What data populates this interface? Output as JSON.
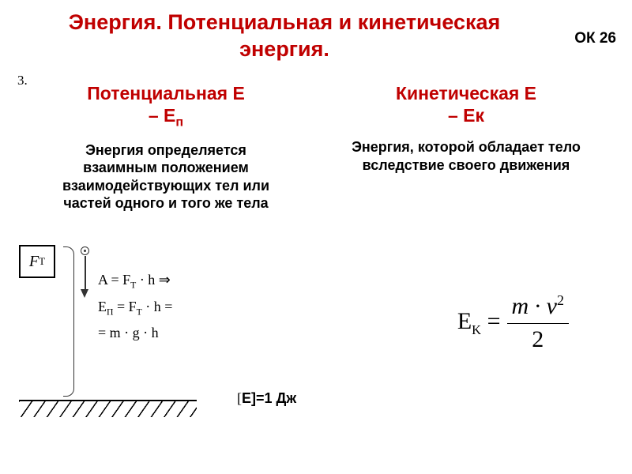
{
  "header": {
    "title": "Энергия. Потенциальная и кинетическая энергия.",
    "ok_label": "ОК 26",
    "section_number": "3.",
    "title_color": "#c00000",
    "title_fontsize": 27
  },
  "potential": {
    "title_line1": "Потенциальная Е",
    "title_line2": "– Е",
    "subscript": "п",
    "definition": "Энергия определяется взаимным положением взаимодействующих тел или частей одного и того же тела",
    "title_color": "#c00000",
    "title_fontsize": 23,
    "def_color": "#000000",
    "def_fontsize": 18,
    "force_label": "F",
    "force_subscript": "Т",
    "formulas": {
      "line1_left": "A = F",
      "line1_sub": "Т",
      "line1_right": " · h ⇒",
      "line2_left": "E",
      "line2_sub1": "П",
      "line2_mid": " = F",
      "line2_sub2": "Т",
      "line2_right": " · h =",
      "line3": "= m · g · h"
    }
  },
  "kinetic": {
    "title_line1": "Кинетическая Е",
    "title_line2": "– Ек",
    "definition": "Энергия, которой обладает тело вследствие своего движения",
    "title_color": "#c00000",
    "title_fontsize": 23,
    "def_color": "#000000",
    "def_fontsize": 18,
    "formula": {
      "lhs_sym": "E",
      "lhs_sub": "K",
      "lhs_tail": " =",
      "num_left": "m · v",
      "num_sup": "2",
      "den": "2"
    }
  },
  "unit": {
    "bracket": "[",
    "text": "Е]=1 Дж"
  },
  "colors": {
    "background": "#ffffff",
    "text": "#000000"
  }
}
